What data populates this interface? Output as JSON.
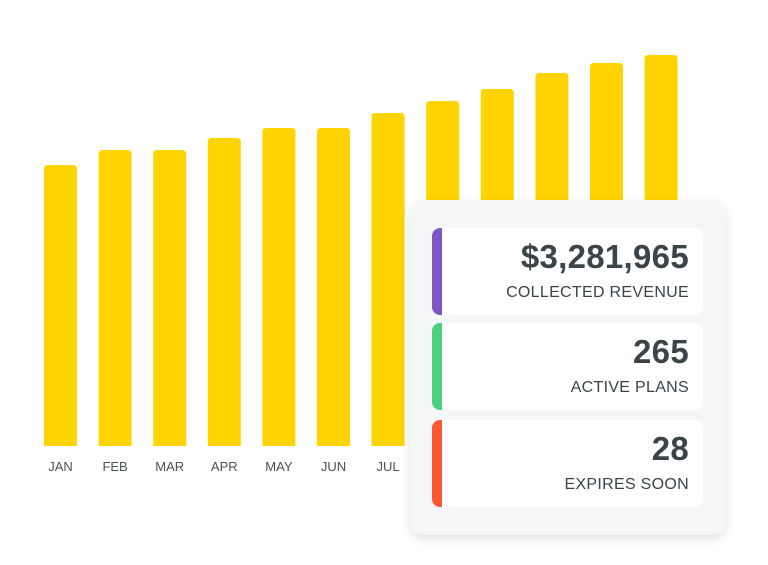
{
  "chart_data": {
    "type": "bar",
    "categories": [
      "JAN",
      "FEB",
      "MAR",
      "APR",
      "MAY",
      "JUN",
      "JUL",
      "",
      "",
      "",
      "",
      ""
    ],
    "values": [
      281,
      296,
      296,
      308,
      318,
      318,
      333,
      345,
      357,
      373,
      383,
      391
    ],
    "title": "",
    "xlabel": "",
    "ylabel": "",
    "ylim": [
      0,
      400
    ],
    "grid": false,
    "bar_color": "#ffd400",
    "label_color": "#4a5257"
  },
  "stats": [
    {
      "value": "$3,281,965",
      "label": "COLLECTED REVENUE",
      "color": "#7e57c2"
    },
    {
      "value": "265",
      "label": "ACTIVE PLANS",
      "color": "#4ccf7e"
    },
    {
      "value": "28",
      "label": "EXPIRES SOON",
      "color": "#ff5733"
    }
  ]
}
